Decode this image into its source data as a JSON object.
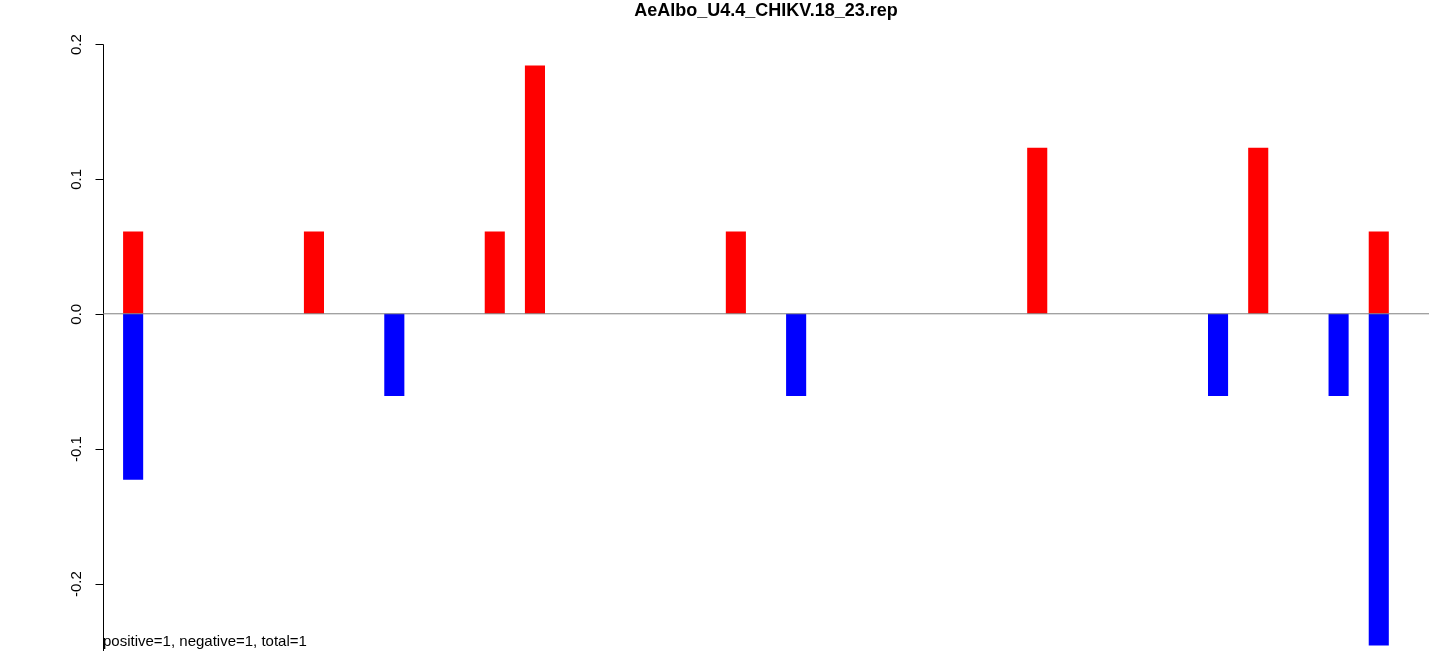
{
  "chart_data": {
    "type": "bar",
    "title": "AeAlbo_U4.4_CHIKV.18_23.rep",
    "categories": [
      null,
      null,
      null,
      null,
      null,
      null,
      null,
      null,
      null,
      null,
      null,
      null,
      null,
      null,
      null,
      null,
      null,
      null,
      null,
      null,
      null,
      null,
      null,
      null,
      null,
      null,
      null,
      null,
      null,
      null,
      null,
      null,
      null,
      null,
      null,
      null,
      null,
      null,
      null,
      null,
      null,
      null,
      null,
      null,
      null,
      null,
      null,
      null,
      null,
      null,
      null,
      null,
      null,
      null,
      null,
      null,
      null,
      null,
      null,
      null,
      null,
      null,
      null,
      null,
      null,
      null
    ],
    "series": [
      {
        "color": "#ff0000",
        "values": [
          null,
          0.061,
          null,
          null,
          null,
          null,
          null,
          null,
          null,
          null,
          0.061,
          null,
          null,
          null,
          null,
          null,
          null,
          null,
          null,
          0.061,
          null,
          0.184,
          null,
          null,
          null,
          null,
          null,
          null,
          null,
          null,
          null,
          0.061,
          null,
          null,
          null,
          null,
          null,
          null,
          null,
          null,
          null,
          null,
          null,
          null,
          null,
          null,
          0.123,
          null,
          null,
          null,
          null,
          null,
          null,
          null,
          null,
          null,
          null,
          0.123,
          null,
          null,
          null,
          null,
          null,
          0.061,
          null,
          null
        ]
      },
      {
        "color": "#0000ff",
        "values": [
          null,
          -0.123,
          null,
          null,
          null,
          null,
          null,
          null,
          null,
          null,
          null,
          null,
          null,
          null,
          -0.061,
          null,
          null,
          null,
          null,
          null,
          null,
          null,
          null,
          null,
          null,
          null,
          null,
          null,
          null,
          null,
          null,
          null,
          null,
          null,
          -0.061,
          null,
          null,
          null,
          null,
          null,
          null,
          null,
          null,
          null,
          null,
          null,
          null,
          null,
          null,
          null,
          null,
          null,
          null,
          null,
          null,
          -0.061,
          null,
          null,
          null,
          null,
          null,
          -0.061,
          null,
          -0.246,
          null,
          null
        ]
      }
    ],
    "ylim": [
      -0.25,
      0.2
    ],
    "yticks": [
      {
        "value": -0.2,
        "label": "-0.2"
      },
      {
        "value": -0.1,
        "label": "-0.1"
      },
      {
        "value": 0,
        "label": "0.0"
      },
      {
        "value": 0.1,
        "label": "0.1"
      },
      {
        "value": 0.2,
        "label": "0.2"
      }
    ],
    "grid": false,
    "legend": false,
    "tick_labels": "y",
    "ref_lines": [
      {
        "axis": "y",
        "value": 0,
        "color": "#808080"
      }
    ],
    "annotations": [
      "positive=1, negative=1, total=1"
    ]
  }
}
